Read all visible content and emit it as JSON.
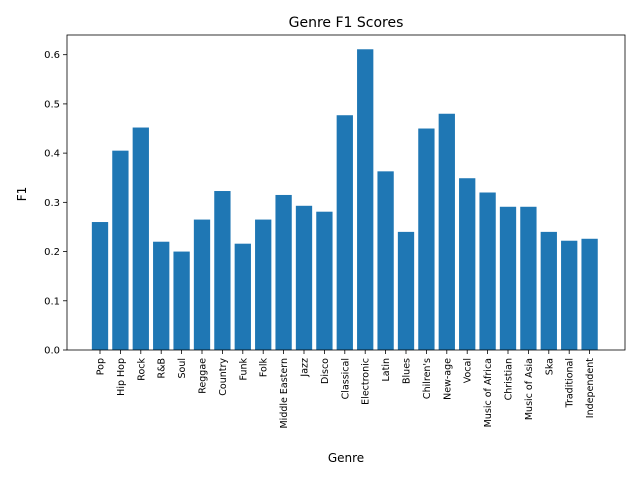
{
  "chart_data": {
    "type": "bar",
    "title": "Genre F1 Scores",
    "xlabel": "Genre",
    "ylabel": "F1",
    "ylim": [
      0,
      0.64
    ],
    "yticks": [
      "0.0",
      "0.1",
      "0.2",
      "0.3",
      "0.4",
      "0.5",
      "0.6"
    ],
    "grid": false,
    "bar_color": "#1f77b4",
    "categories": [
      "Pop",
      "Hip Hop",
      "Rock",
      "R&B",
      "Soul",
      "Reggae",
      "Country",
      "Funk",
      "Folk",
      "Middle Eastern",
      "Jazz",
      "Disco",
      "Classical",
      "Electronic",
      "Latin",
      "Blues",
      "Chilren's",
      "New-age",
      "Vocal",
      "Music of Africa",
      "Christian",
      "Music of Asia",
      "Ska",
      "Traditional",
      "Independent"
    ],
    "values": [
      0.26,
      0.405,
      0.452,
      0.22,
      0.2,
      0.265,
      0.323,
      0.216,
      0.265,
      0.315,
      0.293,
      0.281,
      0.477,
      0.611,
      0.363,
      0.24,
      0.45,
      0.48,
      0.349,
      0.32,
      0.291,
      0.291,
      0.24,
      0.222,
      0.226
    ]
  }
}
